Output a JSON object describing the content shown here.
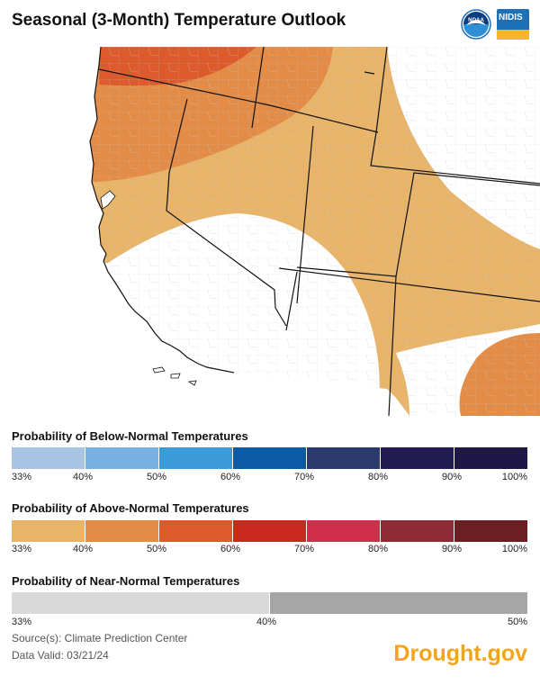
{
  "title": "Seasonal (3-Month) Temperature Outlook",
  "logos": {
    "noaa": "noaa-logo",
    "nidis_text": "NIDIS"
  },
  "map": {
    "colors": {
      "above_33": "#e8b46a",
      "above_40": "#e38c47",
      "above_50": "#dd5a2c",
      "background": "#ffffff",
      "state_border": "#111111",
      "county_border": "#bdbdbd"
    }
  },
  "legends": {
    "below": {
      "title": "Probability of Below-Normal Temperatures",
      "colors": [
        "#a7c5e3",
        "#78b1e1",
        "#3c9bd7",
        "#0b5aa3",
        "#2b3a6d",
        "#231c52",
        "#1f1847"
      ],
      "ticks": [
        "33%",
        "40%",
        "50%",
        "60%",
        "70%",
        "80%",
        "90%",
        "100%"
      ]
    },
    "above": {
      "title": "Probability of Above-Normal Temperatures",
      "colors": [
        "#e8b46a",
        "#e38c47",
        "#dd5a2c",
        "#c7291f",
        "#d02f4c",
        "#8c2b33",
        "#6b1f22"
      ],
      "ticks": [
        "33%",
        "40%",
        "50%",
        "60%",
        "70%",
        "80%",
        "90%",
        "100%"
      ]
    },
    "near": {
      "title": "Probability of Near-Normal Temperatures",
      "colors": [
        "#d9d9d9",
        "#a6a6a6"
      ],
      "ticks": [
        "33%",
        "40%",
        "50%"
      ]
    }
  },
  "source": "Source(s): Climate Prediction Center",
  "valid": "Data Valid: 03/21/24",
  "brand": "Drought.gov"
}
